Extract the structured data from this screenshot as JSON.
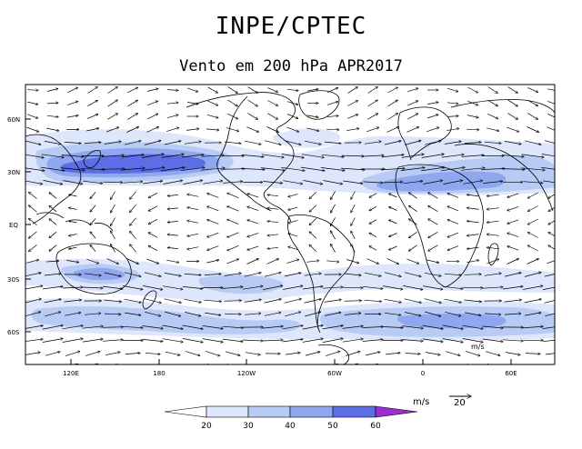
{
  "header": {
    "title": "INPE/CPTEC",
    "subtitle": "Vento em 200 hPa APR2017"
  },
  "map": {
    "lat_labels": [
      "60N",
      "30N",
      "EQ",
      "30S",
      "60S"
    ],
    "lon_labels": [
      "120E",
      "180",
      "120W",
      "60W",
      "0",
      "60E"
    ],
    "inset_unit_label": "m/s"
  },
  "reference_vector": {
    "unit": "m/s",
    "value": "20"
  },
  "colorbar": {
    "labels": [
      "20",
      "30",
      "40",
      "50",
      "60"
    ],
    "colors": [
      "#ffffff",
      "#dde6fb",
      "#b8cbf5",
      "#8fa7ef",
      "#5c6ee6",
      "#9b2fcf"
    ]
  },
  "colors": {
    "shade_weak": "#dde6fb",
    "shade_medium": "#b8cbf5",
    "shade_strong": "#8fa7ef",
    "shade_core": "#5c6ee6",
    "shade_max": "#9b2fcf"
  }
}
